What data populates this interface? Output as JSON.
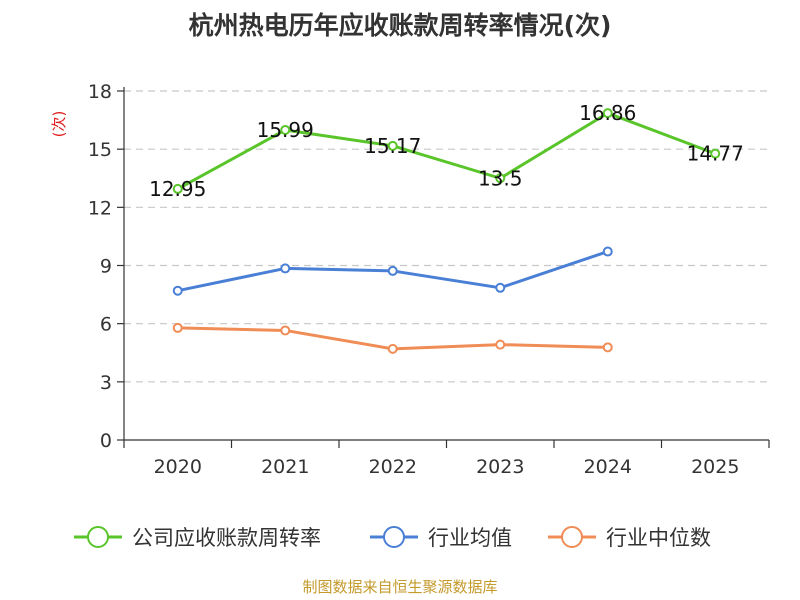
{
  "chart_data": {
    "type": "line",
    "title": "杭州热电历年应收账款周转率情况(次)",
    "ylabel": "(次)",
    "xlabel": "",
    "categories": [
      "2020",
      "2021",
      "2022",
      "2023",
      "2024",
      "2025"
    ],
    "ylim": [
      0,
      18
    ],
    "yticks": [
      "0",
      "3",
      "6",
      "9",
      "12",
      "15",
      "18"
    ],
    "grid": "horizontal-dashed",
    "legend_position": "bottom",
    "series": [
      {
        "name": "公司应收账款周转率",
        "color": "#5ac52a",
        "values": [
          12.95,
          15.99,
          15.17,
          13.5,
          16.86,
          14.77
        ],
        "labels": [
          "12.95",
          "15.99",
          "15.17",
          "13.5",
          "16.86",
          "14.77"
        ]
      },
      {
        "name": "行业均值",
        "color": "#4a7fd6",
        "values": [
          7.7,
          8.85,
          8.72,
          7.85,
          9.72,
          null
        ]
      },
      {
        "name": "行业中位数",
        "color": "#f08c55",
        "values": [
          5.78,
          5.65,
          4.7,
          4.92,
          4.78,
          null
        ]
      }
    ]
  },
  "source": {
    "text": "制图数据来自恒生聚源数据库",
    "color": "#c49a2c"
  },
  "colors": {
    "axis": "#333333",
    "grid": "#c8c8c8",
    "ylabel": "#e02020"
  }
}
